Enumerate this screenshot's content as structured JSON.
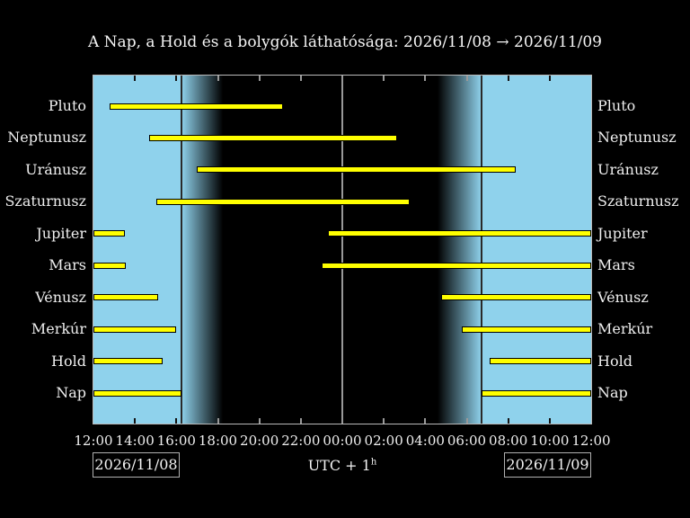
{
  "title": "A Nap, a Hold és a bolygók láthatósága: 2026/11/08 → 2026/11/09",
  "dates": {
    "left": "2026/11/08",
    "right": "2026/11/09"
  },
  "utc": {
    "prefix": "UTC + 1",
    "superscript": "h"
  },
  "chart_data": {
    "type": "bar",
    "subtype": "horizontal-time-visibility-gantt",
    "title": "A Nap, a Hold és a bolygók láthatósága: 2026/11/08 → 2026/11/09",
    "x_axis": {
      "start_label": "12:00",
      "span_hours": 24,
      "tick_interval_hours": 2,
      "tick_labels": [
        "12:00",
        "14:00",
        "16:00",
        "18:00",
        "20:00",
        "22:00",
        "00:00",
        "02:00",
        "04:00",
        "06:00",
        "08:00",
        "10:00",
        "12:00"
      ]
    },
    "rows": [
      {
        "label": "Pluto",
        "segments": [
          [
            0.77,
            9.15
          ]
        ]
      },
      {
        "label": "Neptunusz",
        "segments": [
          [
            2.7,
            14.65
          ]
        ]
      },
      {
        "label": "Uránusz",
        "segments": [
          [
            5.0,
            20.35
          ]
        ]
      },
      {
        "label": "Szaturnusz",
        "segments": [
          [
            3.05,
            15.25
          ]
        ]
      },
      {
        "label": "Jupiter",
        "segments": [
          [
            0,
            1.5
          ],
          [
            11.3,
            24
          ]
        ]
      },
      {
        "label": "Mars",
        "segments": [
          [
            0,
            1.55
          ],
          [
            11.0,
            24
          ]
        ]
      },
      {
        "label": "Vénusz",
        "segments": [
          [
            0,
            3.1
          ],
          [
            16.75,
            24
          ]
        ]
      },
      {
        "label": "Merkúr",
        "segments": [
          [
            0,
            4.0
          ],
          [
            17.75,
            24
          ]
        ]
      },
      {
        "label": "Hold",
        "segments": [
          [
            0,
            3.35
          ],
          [
            19.1,
            24
          ]
        ]
      },
      {
        "label": "Nap",
        "segments": [
          [
            0,
            4.25
          ],
          [
            18.7,
            24
          ]
        ]
      }
    ],
    "bands": {
      "day1_end": 4.23,
      "twilight_evening_end": 6.25,
      "twilight_morning_start": 16.6,
      "day2_start": 18.72,
      "midnight_line": 12
    },
    "colors": {
      "day": "#8fd2ec",
      "night": "#000000",
      "bar": "#ffff00",
      "bar_outline": "#000000",
      "midnight_line": "#999999",
      "terminator_line": "#2a2a2a",
      "tick_day": "#111111",
      "tick_night": "#999999",
      "text": "#f0f0f0",
      "plot_border": "#b9b9b9"
    },
    "legend": "none",
    "grid": "midnight vertical line only"
  }
}
